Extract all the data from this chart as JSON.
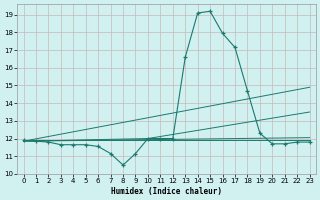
{
  "xlabel": "Humidex (Indice chaleur)",
  "bg_color": "#d1f0f0",
  "grid_color": "#c8b8b8",
  "line_color": "#1a7a6e",
  "xlim": [
    -0.5,
    23.5
  ],
  "ylim": [
    10.0,
    19.6
  ],
  "yticks": [
    10,
    11,
    12,
    13,
    14,
    15,
    16,
    17,
    18,
    19
  ],
  "xticks": [
    0,
    1,
    2,
    3,
    4,
    5,
    6,
    7,
    8,
    9,
    10,
    11,
    12,
    13,
    14,
    15,
    16,
    17,
    18,
    19,
    20,
    21,
    22,
    23
  ],
  "main_x": [
    0,
    1,
    2,
    3,
    4,
    5,
    6,
    7,
    8,
    9,
    10,
    11,
    12,
    13,
    14,
    15,
    16,
    17,
    18,
    19,
    20,
    21,
    22,
    23
  ],
  "main_y": [
    11.9,
    11.85,
    11.8,
    11.65,
    11.65,
    11.65,
    11.55,
    11.15,
    10.5,
    11.15,
    12.0,
    12.0,
    12.0,
    16.6,
    19.1,
    19.2,
    17.95,
    17.15,
    14.7,
    12.3,
    11.7,
    11.7,
    11.8,
    11.8
  ],
  "line1_x": [
    0,
    23
  ],
  "line1_y": [
    11.9,
    11.9
  ],
  "line2_x": [
    0,
    23
  ],
  "line2_y": [
    11.85,
    12.05
  ],
  "line3_x": [
    0,
    23
  ],
  "line3_y": [
    11.85,
    14.9
  ],
  "line4_x": [
    0,
    10,
    23
  ],
  "line4_y": [
    11.85,
    12.0,
    13.5
  ]
}
